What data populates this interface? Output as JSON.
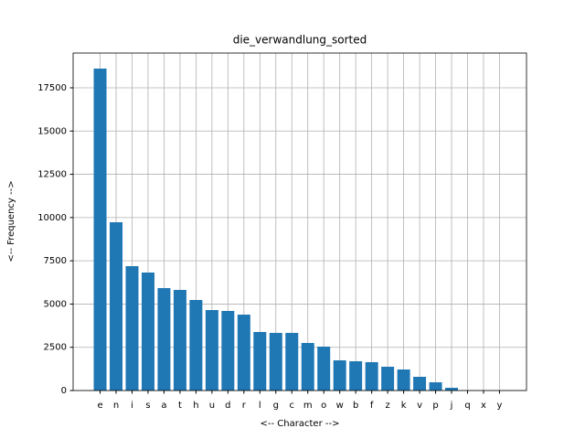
{
  "chart_data": {
    "type": "bar",
    "title": "die_verwandlung_sorted",
    "x_label": "<-- Character -->",
    "y_label": "<-- Frequency -->",
    "categories": [
      "e",
      "n",
      "i",
      "s",
      "a",
      "t",
      "h",
      "u",
      "d",
      "r",
      "l",
      "g",
      "c",
      "m",
      "o",
      "w",
      "b",
      "f",
      "z",
      "k",
      "v",
      "p",
      "j",
      "q",
      "x",
      "y"
    ],
    "values": [
      18610,
      9728,
      7190,
      6820,
      5921,
      5816,
      5234,
      4653,
      4600,
      4388,
      3384,
      3331,
      3331,
      2749,
      2538,
      1745,
      1692,
      1640,
      1375,
      1216,
      793,
      476,
      159,
      10,
      5,
      3
    ],
    "color": "#1f77b4",
    "ylim": [
      0,
      19509
    ],
    "yticks": [
      0,
      2500,
      5000,
      7500,
      10000,
      12500,
      15000,
      17500
    ],
    "grid": true
  }
}
